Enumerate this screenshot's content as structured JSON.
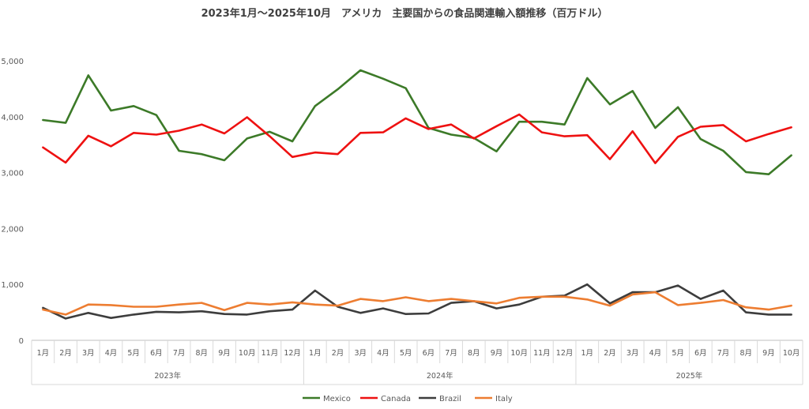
{
  "chart_data": {
    "type": "line",
    "title": "2023年1月～2025年10月　アメリカ　主要国からの食品関連輸入額推移（百万ドル）",
    "months": [
      "1月",
      "2月",
      "3月",
      "4月",
      "5月",
      "6月",
      "7月",
      "8月",
      "9月",
      "10月",
      "11月",
      "12月",
      "1月",
      "2月",
      "3月",
      "4月",
      "5月",
      "6月",
      "7月",
      "8月",
      "9月",
      "10月",
      "11月",
      "12月",
      "1月",
      "2月",
      "3月",
      "4月",
      "5月",
      "6月",
      "7月",
      "8月",
      "9月",
      "10月"
    ],
    "years": [
      {
        "label": "2023年",
        "count": 12
      },
      {
        "label": "2024年",
        "count": 12
      },
      {
        "label": "2025年",
        "count": 10
      }
    ],
    "ylim": [
      0,
      5000
    ],
    "yticks": [
      0,
      1000,
      2000,
      3000,
      4000,
      5000
    ],
    "ytick_labels": [
      "0",
      "1,000",
      "2,000",
      "3,000",
      "4,000",
      "5,000"
    ],
    "grid": false,
    "legend_position": "bottom",
    "series": [
      {
        "name": "Mexico",
        "color": "#3c7a28",
        "values": [
          3940,
          3890,
          4740,
          4110,
          4190,
          4030,
          3390,
          3330,
          3220,
          3610,
          3730,
          3560,
          4190,
          4490,
          4830,
          4680,
          4510,
          3800,
          3680,
          3620,
          3380,
          3910,
          3910,
          3860,
          4690,
          4220,
          4460,
          3800,
          4170,
          3600,
          3390,
          3010,
          2970,
          3310
        ]
      },
      {
        "name": "Canada",
        "color": "#ee1111",
        "values": [
          3450,
          3180,
          3660,
          3470,
          3710,
          3680,
          3750,
          3860,
          3700,
          3990,
          3650,
          3280,
          3360,
          3330,
          3710,
          3720,
          3970,
          3780,
          3860,
          3610,
          3830,
          4040,
          3720,
          3650,
          3670,
          3240,
          3740,
          3170,
          3640,
          3820,
          3850,
          3560,
          3690,
          3810
        ]
      },
      {
        "name": "Brazil",
        "color": "#3d3d3d",
        "values": [
          580,
          390,
          490,
          400,
          460,
          510,
          500,
          520,
          470,
          460,
          520,
          550,
          890,
          600,
          490,
          570,
          470,
          480,
          670,
          700,
          570,
          640,
          780,
          800,
          1000,
          660,
          860,
          860,
          980,
          740,
          890,
          500,
          460,
          460
        ]
      },
      {
        "name": "Italy",
        "color": "#ed7d31",
        "values": [
          550,
          460,
          640,
          630,
          600,
          600,
          640,
          670,
          540,
          670,
          640,
          680,
          640,
          620,
          740,
          700,
          770,
          700,
          740,
          700,
          660,
          760,
          780,
          780,
          730,
          620,
          820,
          860,
          630,
          670,
          720,
          590,
          550,
          620
        ]
      }
    ]
  }
}
